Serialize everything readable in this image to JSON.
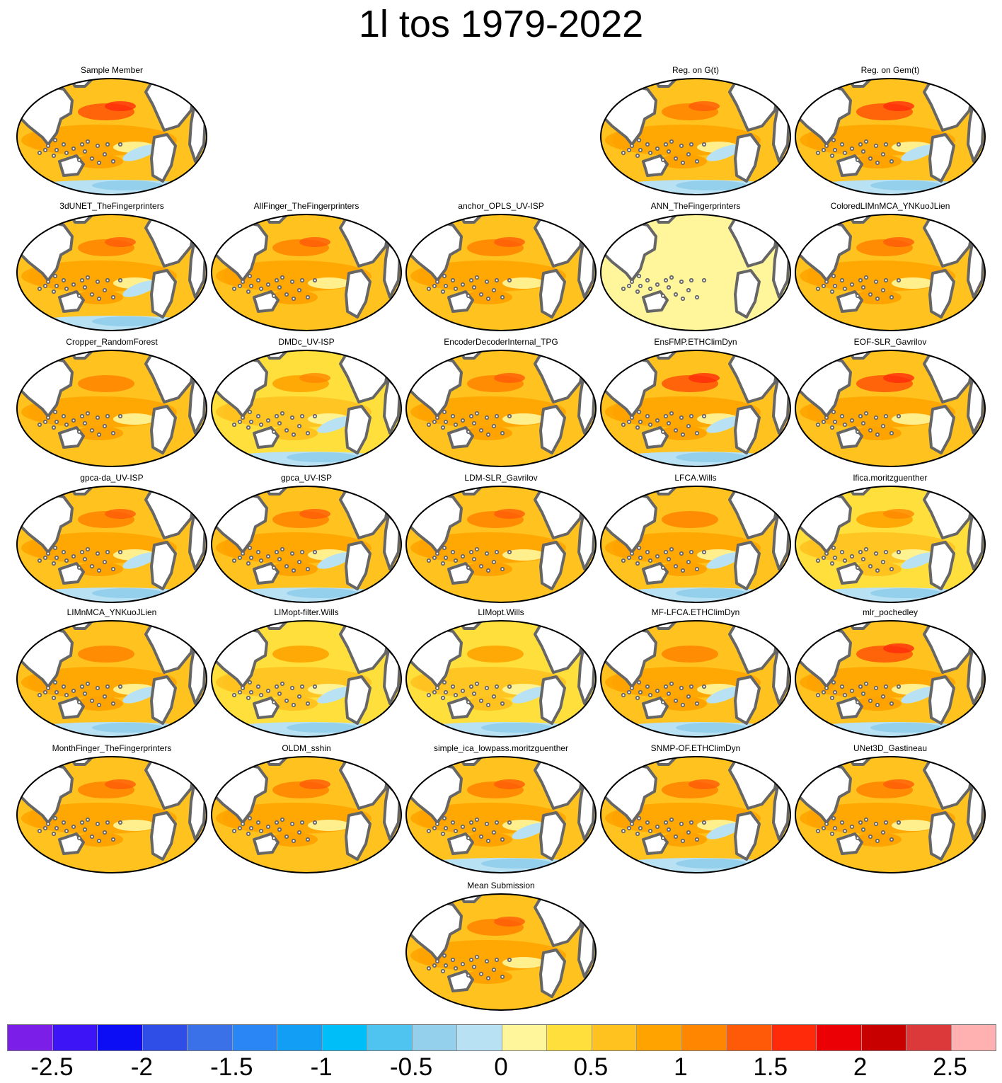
{
  "title": "1l tos 1979-2022",
  "colorbar": {
    "colors": [
      "#7b1fe8",
      "#3c14f5",
      "#0d0df5",
      "#2f4ee8",
      "#3a71e8",
      "#2a86f5",
      "#129ef5",
      "#00bef8",
      "#50c4f0",
      "#94d0ec",
      "#b8e2f4",
      "#fff69c",
      "#ffdf3c",
      "#ffc21e",
      "#ffa300",
      "#ff8600",
      "#ff5a08",
      "#ff2a0a",
      "#eb0005",
      "#c80000",
      "#dc3a3a",
      "#ffb0b0"
    ],
    "tick_labels": [
      "-2.5",
      "-2",
      "-1.5",
      "-1",
      "-0.5",
      "0",
      "0.5",
      "1",
      "1.5",
      "2",
      "2.5"
    ]
  },
  "panels": [
    {
      "title": "Sample Member",
      "row": 0,
      "col": 0,
      "level": "strong",
      "cold_south": true,
      "warm_north": true
    },
    {
      "title": "Reg. on G(t)",
      "row": 0,
      "col": 3,
      "level": "medium",
      "cold_south": true,
      "warm_north": true
    },
    {
      "title": "Reg. on Gem(t)",
      "row": 0,
      "col": 4,
      "level": "strong",
      "cold_south": true,
      "warm_north": true
    },
    {
      "title": "3dUNET_TheFingerprinters",
      "row": 1,
      "col": 0,
      "level": "medium",
      "cold_south": true,
      "warm_north": true
    },
    {
      "title": "AllFinger_TheFingerprinters",
      "row": 1,
      "col": 1,
      "level": "medium",
      "cold_south": false,
      "warm_north": true
    },
    {
      "title": "anchor_OPLS_UV-ISP",
      "row": 1,
      "col": 2,
      "level": "medium",
      "cold_south": false,
      "warm_north": true
    },
    {
      "title": "ANN_TheFingerprinters",
      "row": 1,
      "col": 3,
      "level": "flat",
      "cold_south": false,
      "warm_north": false
    },
    {
      "title": "ColoredLIMnMCA_YNKuoJLien",
      "row": 1,
      "col": 4,
      "level": "medium",
      "cold_south": false,
      "warm_north": true
    },
    {
      "title": "Cropper_RandomForest",
      "row": 2,
      "col": 0,
      "level": "medium",
      "cold_south": false,
      "warm_north": false
    },
    {
      "title": "DMDc_UV-ISP",
      "row": 2,
      "col": 1,
      "level": "weak",
      "cold_south": true,
      "warm_north": true
    },
    {
      "title": "EncoderDecoderInternal_TPG",
      "row": 2,
      "col": 2,
      "level": "medium",
      "cold_south": false,
      "warm_north": true
    },
    {
      "title": "EnsFMP.ETHClimDyn",
      "row": 2,
      "col": 3,
      "level": "strong",
      "cold_south": true,
      "warm_north": true
    },
    {
      "title": "EOF-SLR_Gavrilov",
      "row": 2,
      "col": 4,
      "level": "strong",
      "cold_south": false,
      "warm_north": true
    },
    {
      "title": "gpca-da_UV-ISP",
      "row": 3,
      "col": 0,
      "level": "medium",
      "cold_south": true,
      "warm_north": true
    },
    {
      "title": "gpca_UV-ISP",
      "row": 3,
      "col": 1,
      "level": "medium",
      "cold_south": true,
      "warm_north": true
    },
    {
      "title": "LDM-SLR_Gavrilov",
      "row": 3,
      "col": 2,
      "level": "medium",
      "cold_south": false,
      "warm_north": true
    },
    {
      "title": "LFCA.Wills",
      "row": 3,
      "col": 3,
      "level": "medium",
      "cold_south": true,
      "warm_north": false
    },
    {
      "title": "lfica.moritzguenther",
      "row": 3,
      "col": 4,
      "level": "weak",
      "cold_south": true,
      "warm_north": true
    },
    {
      "title": "LIMnMCA_YNKuoJLien",
      "row": 4,
      "col": 0,
      "level": "medium",
      "cold_south": true,
      "warm_north": false
    },
    {
      "title": "LIMopt-filter.Wills",
      "row": 4,
      "col": 1,
      "level": "weak",
      "cold_south": true,
      "warm_north": false
    },
    {
      "title": "LIMopt.Wills",
      "row": 4,
      "col": 2,
      "level": "weak",
      "cold_south": true,
      "warm_north": false
    },
    {
      "title": "MF-LFCA.ETHClimDyn",
      "row": 4,
      "col": 3,
      "level": "medium",
      "cold_south": true,
      "warm_north": false
    },
    {
      "title": "mlr_pochedley",
      "row": 4,
      "col": 4,
      "level": "strong",
      "cold_south": true,
      "warm_north": true
    },
    {
      "title": "MonthFinger_TheFingerprinters",
      "row": 5,
      "col": 0,
      "level": "medium",
      "cold_south": false,
      "warm_north": true
    },
    {
      "title": "OLDM_sshin",
      "row": 5,
      "col": 1,
      "level": "medium",
      "cold_south": false,
      "warm_north": true
    },
    {
      "title": "simple_ica_lowpass.moritzguenther",
      "row": 5,
      "col": 2,
      "level": "medium",
      "cold_south": true,
      "warm_north": true
    },
    {
      "title": "SNMP-OF.ETHClimDyn",
      "row": 5,
      "col": 3,
      "level": "medium",
      "cold_south": true,
      "warm_north": true
    },
    {
      "title": "UNet3D_Gastineau",
      "row": 5,
      "col": 4,
      "level": "medium",
      "cold_south": false,
      "warm_north": true
    },
    {
      "title": "Mean Submission",
      "row": 6,
      "col": 2,
      "level": "medium",
      "cold_south": false,
      "warm_north": true
    }
  ]
}
